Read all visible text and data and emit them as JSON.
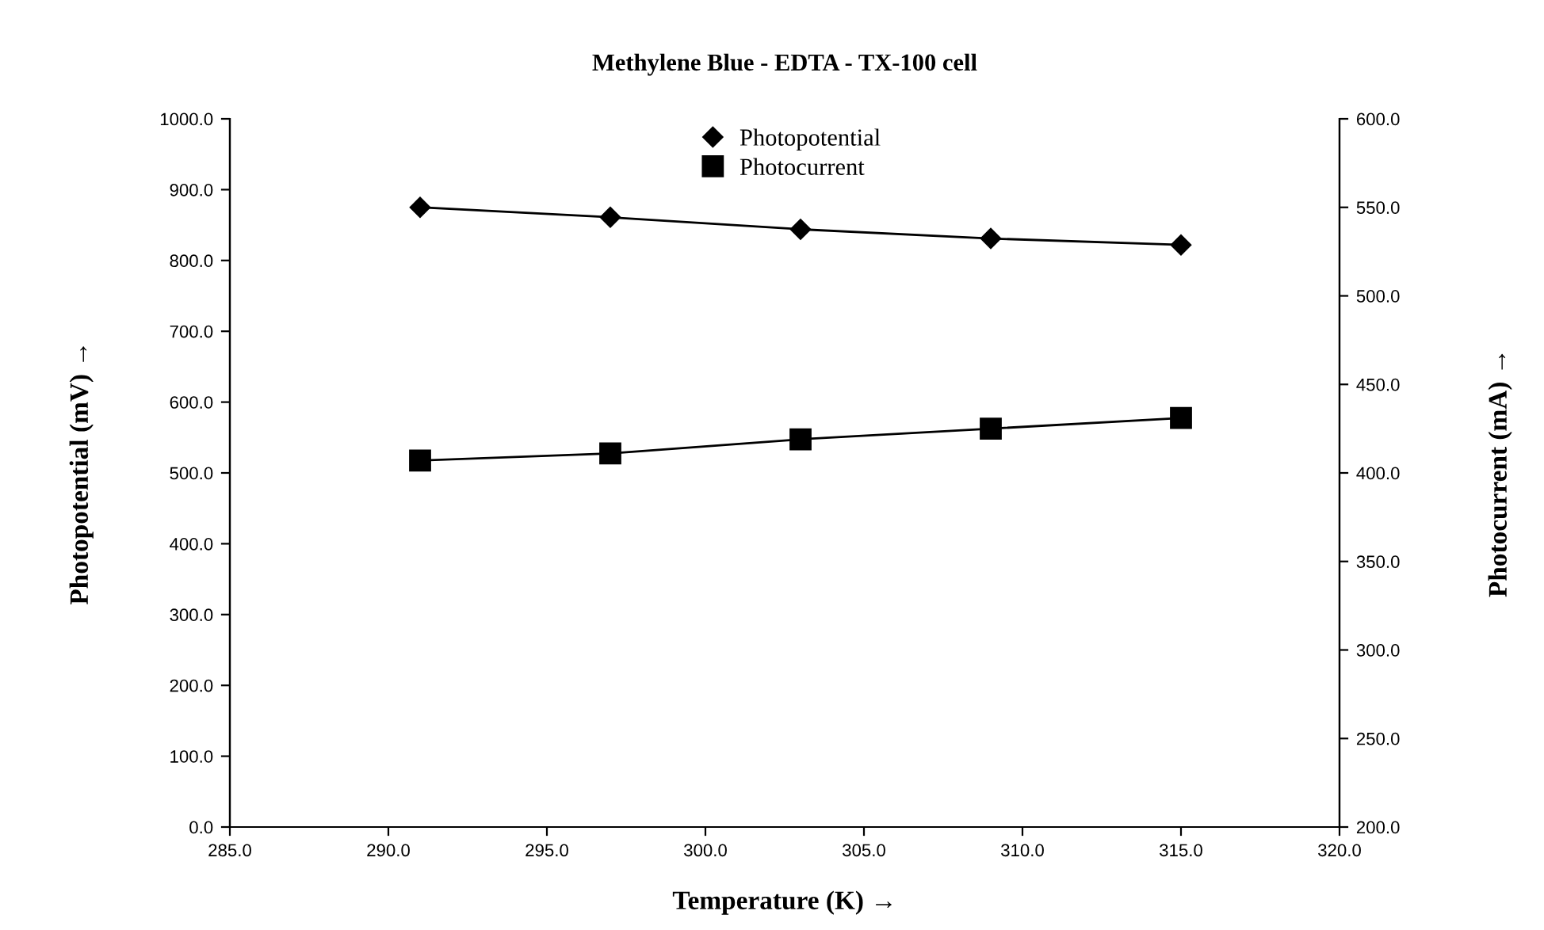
{
  "chart_data": {
    "type": "line",
    "title": "Methylene Blue - EDTA - TX-100 cell",
    "xlabel": "Temperature (K) →",
    "ylabel": "Photopotential (mV) →",
    "y2label": "Photocurrent (mA) →",
    "x": [
      291,
      297,
      303,
      309,
      315
    ],
    "series": [
      {
        "name": "Photopotential",
        "color": "#000000",
        "marker": "diamond",
        "values": [
          875,
          861,
          844,
          831,
          822
        ]
      },
      {
        "name": "Photocurrent",
        "color": "#000000",
        "marker": "square",
        "axis": "y2",
        "values": [
          407,
          411,
          419,
          425,
          431
        ]
      }
    ],
    "xlim": [
      285,
      320
    ],
    "xticks": [
      {
        "value": 285,
        "label": "285.0"
      },
      {
        "value": 290,
        "label": "290.0"
      },
      {
        "value": 295,
        "label": "295.0"
      },
      {
        "value": 300,
        "label": "300.0"
      },
      {
        "value": 305,
        "label": "305.0"
      },
      {
        "value": 310,
        "label": "310.0"
      },
      {
        "value": 315,
        "label": "315.0"
      },
      {
        "value": 320,
        "label": "320.0"
      }
    ],
    "ylim": [
      0,
      1000
    ],
    "yticks": [
      {
        "value": 0,
        "label": "0.0"
      },
      {
        "value": 100,
        "label": "100.0"
      },
      {
        "value": 200,
        "label": "200.0"
      },
      {
        "value": 300,
        "label": "300.0"
      },
      {
        "value": 400,
        "label": "400.0"
      },
      {
        "value": 500,
        "label": "500.0"
      },
      {
        "value": 600,
        "label": "600.0"
      },
      {
        "value": 700,
        "label": "700.0"
      },
      {
        "value": 800,
        "label": "800.0"
      },
      {
        "value": 900,
        "label": "900.0"
      },
      {
        "value": 1000,
        "label": "1000.0"
      }
    ],
    "y2lim": [
      200,
      600
    ],
    "y2ticks": [
      {
        "value": 200,
        "label": "200.0"
      },
      {
        "value": 250,
        "label": "250.0"
      },
      {
        "value": 300,
        "label": "300.0"
      },
      {
        "value": 350,
        "label": "350.0"
      },
      {
        "value": 400,
        "label": "400.0"
      },
      {
        "value": 450,
        "label": "450.0"
      },
      {
        "value": 500,
        "label": "500.0"
      },
      {
        "value": 550,
        "label": "550.0"
      },
      {
        "value": 600,
        "label": "600.0"
      }
    ],
    "grid": false,
    "legend": "top",
    "line_style": "solid"
  }
}
